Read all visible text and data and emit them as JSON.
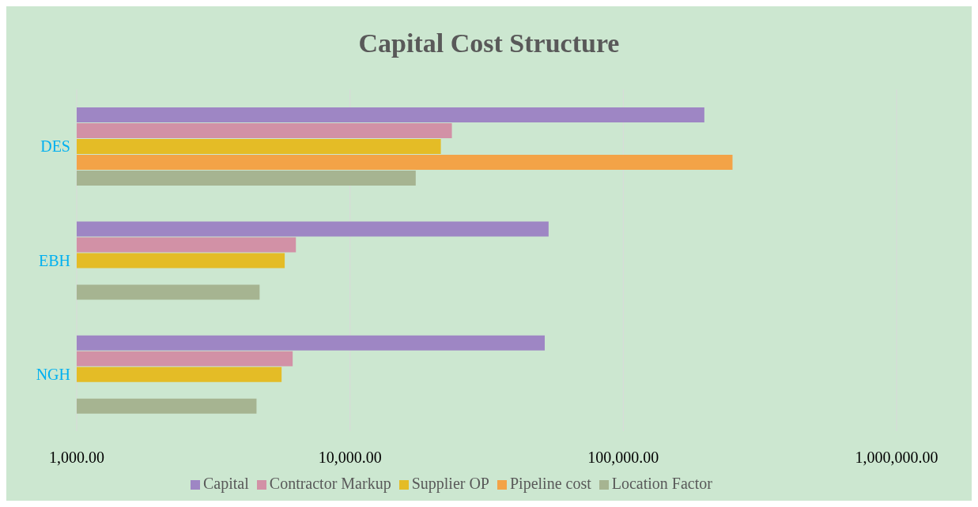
{
  "chart_data": {
    "type": "bar",
    "orientation": "horizontal",
    "title": "Capital Cost Structure",
    "categories": [
      "DES",
      "EBH",
      "NGH"
    ],
    "series": [
      {
        "name": "Capital",
        "color": "#9e86c4",
        "values": [
          198000,
          53300,
          51600
        ]
      },
      {
        "name": "Contractor Markup",
        "color": "#d291a6",
        "values": [
          23600,
          6340,
          6170
        ]
      },
      {
        "name": "Supplier OP",
        "color": "#e4bc26",
        "values": [
          21500,
          5770,
          5620
        ]
      },
      {
        "name": "Pipeline cost",
        "color": "#f3a347",
        "values": [
          251000,
          null,
          null
        ]
      },
      {
        "name": "Location Factor",
        "color": "#a6b491",
        "values": [
          17400,
          4670,
          4550
        ]
      }
    ],
    "log": "x",
    "xlim": [
      1000,
      1000000
    ],
    "xticks": [
      {
        "value": 1000,
        "label": "1,000.00"
      },
      {
        "value": 10000,
        "label": "10,000.00"
      },
      {
        "value": 100000,
        "label": "100,000.00"
      },
      {
        "value": 1000000,
        "label": "1,000,000.00"
      }
    ],
    "grid": "x",
    "legend": "bottom"
  }
}
